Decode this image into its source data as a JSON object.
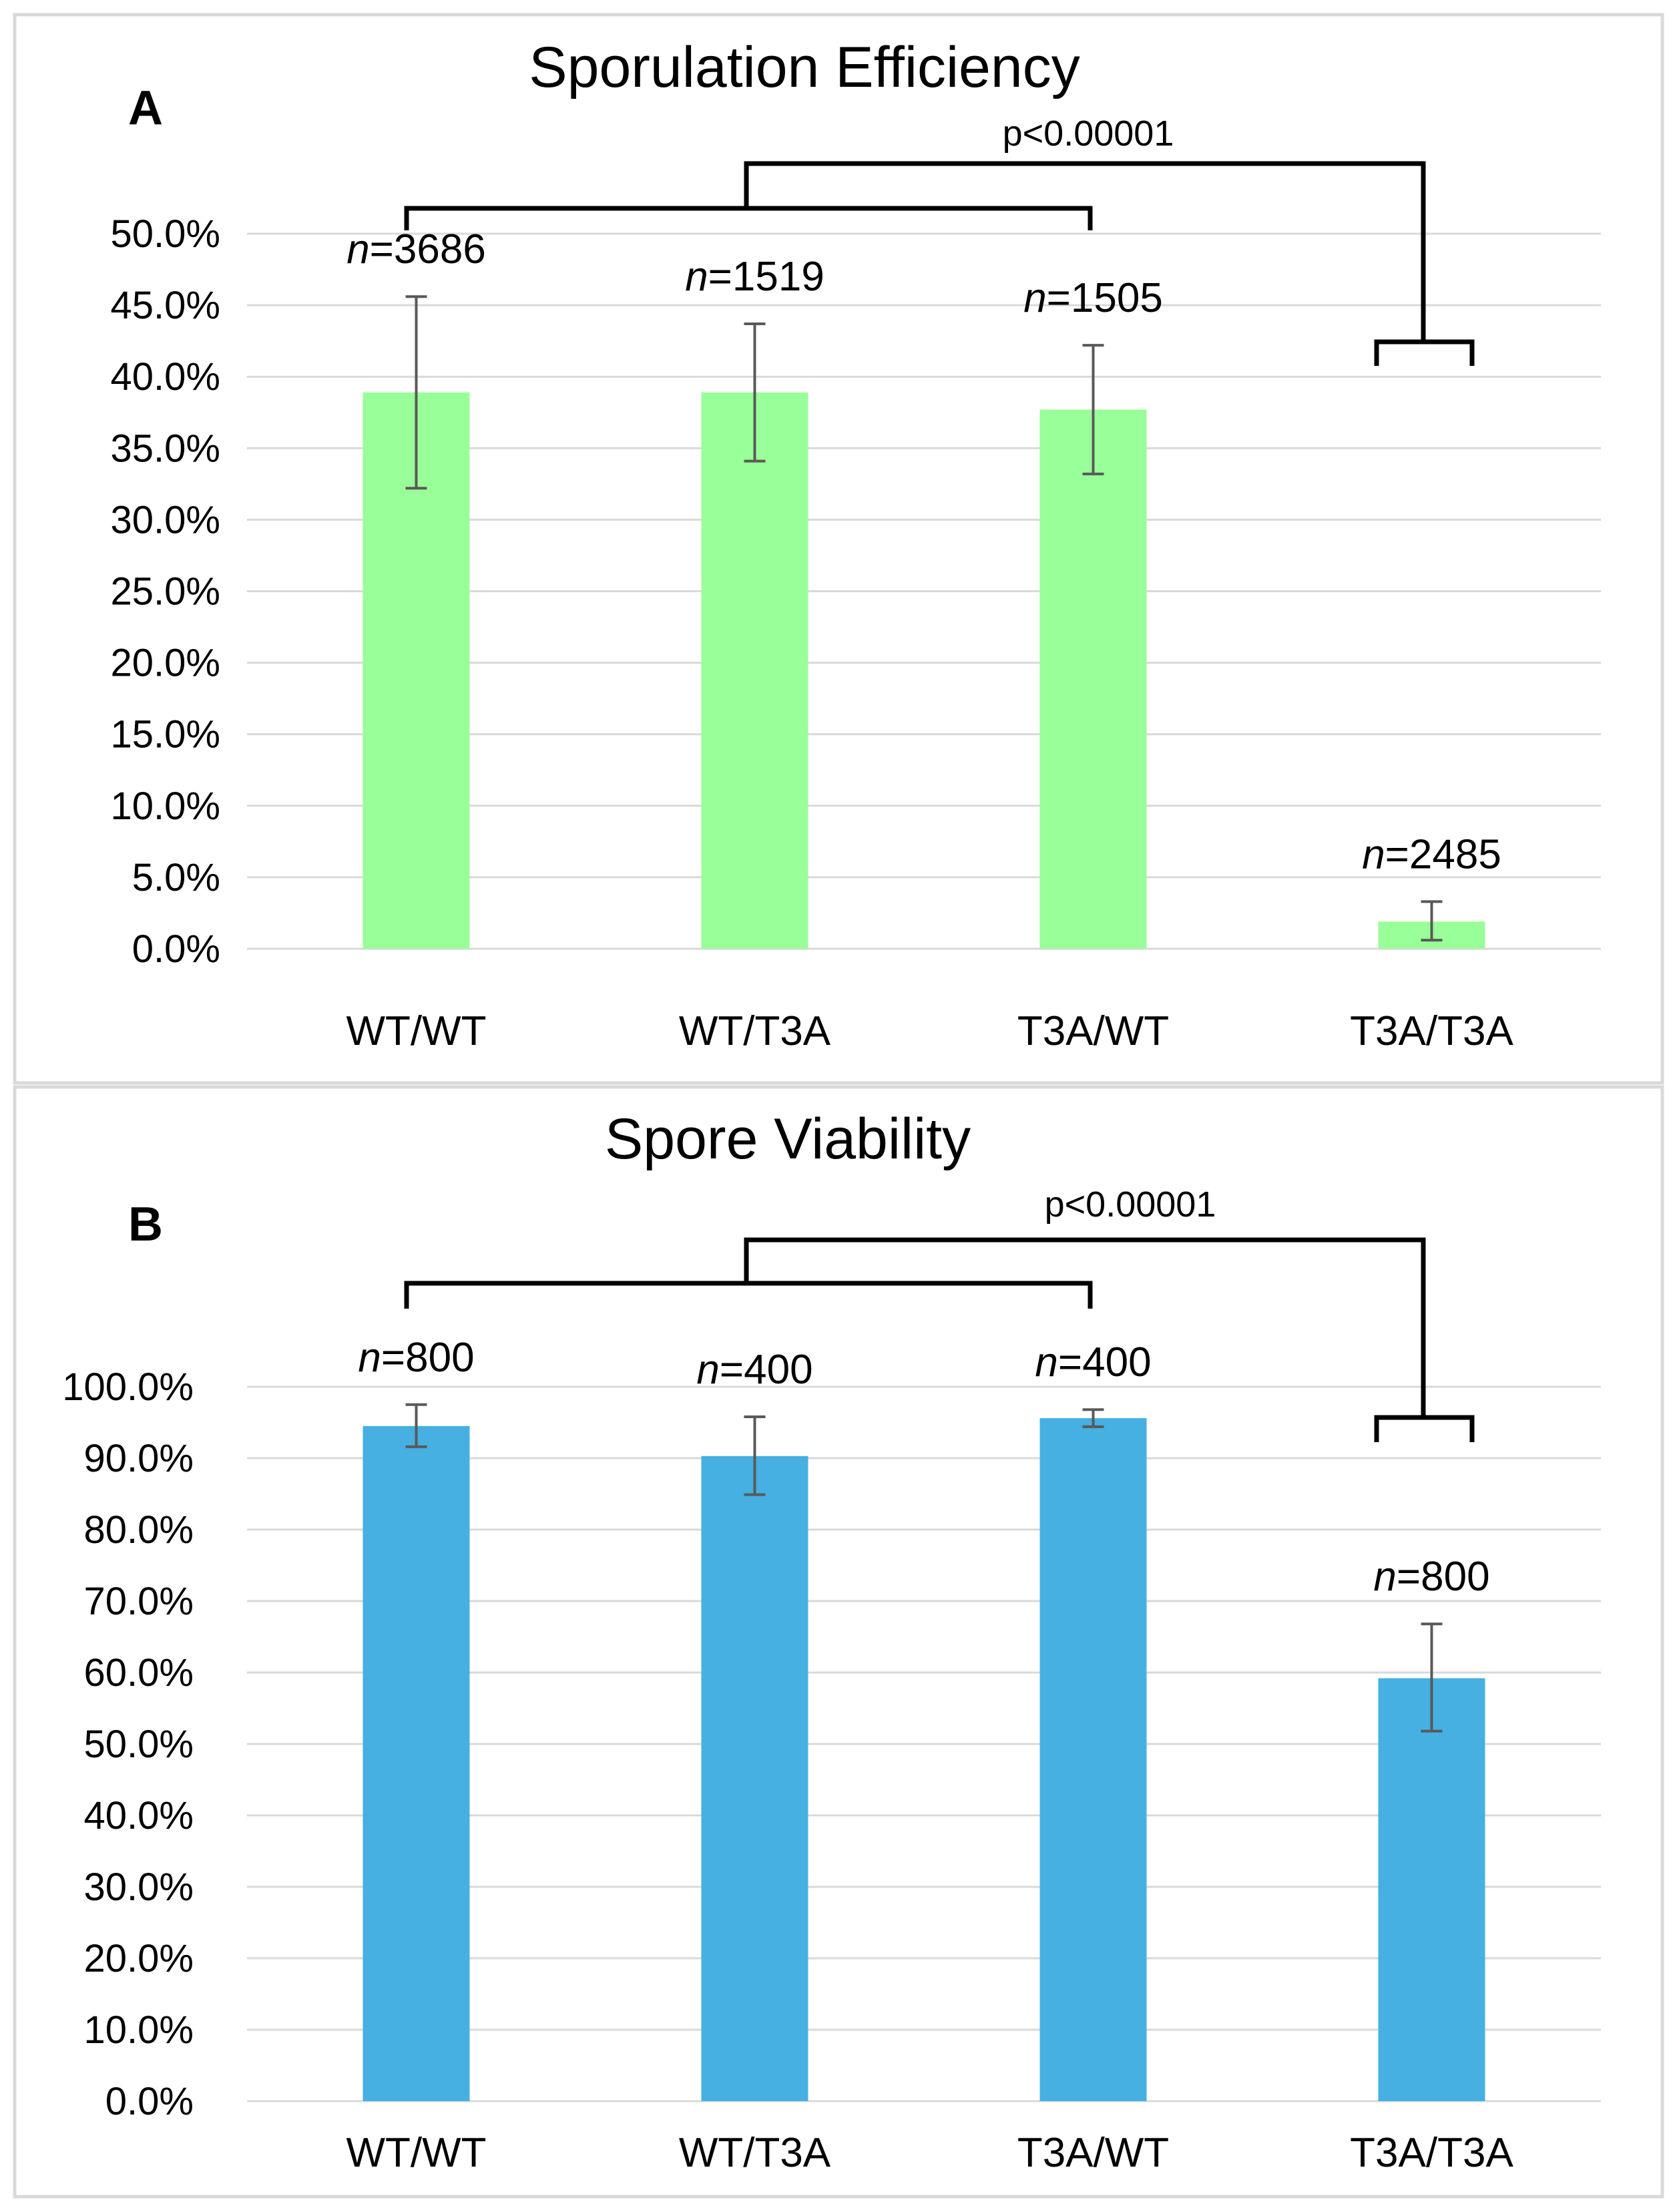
{
  "chart_data": [
    {
      "type": "bar",
      "panel_label": "A",
      "title": "Sporulation Efficiency",
      "categories": [
        "WT/WT",
        "WT/T3A",
        "T3A/WT",
        "T3A/T3A"
      ],
      "values": [
        38.9,
        38.9,
        37.7,
        1.9
      ],
      "error_low": [
        32.2,
        34.1,
        33.2,
        0.6
      ],
      "error_high": [
        45.6,
        43.7,
        42.2,
        3.3
      ],
      "n_prefix": "n",
      "n_labels": [
        "=3686",
        "=1519",
        "=1505",
        "=2485"
      ],
      "color": "#99ff99",
      "ylim": [
        0,
        50
      ],
      "yticks": [
        0,
        5,
        10,
        15,
        20,
        25,
        30,
        35,
        40,
        45,
        50
      ],
      "ytick_labels": [
        "0.0%",
        "5.0%",
        "10.0%",
        "15.0%",
        "20.0%",
        "25.0%",
        "30.0%",
        "35.0%",
        "40.0%",
        "45.0%",
        "50.0%"
      ],
      "xlabel": "",
      "ylabel": "",
      "grid": true,
      "significance": {
        "label": "p<0.00001",
        "group_left": [
          "WT/WT",
          "WT/T3A",
          "T3A/WT"
        ],
        "group_right": [
          "T3A/T3A"
        ]
      }
    },
    {
      "type": "bar",
      "panel_label": "B",
      "title": "Spore Viability",
      "categories": [
        "WT/WT",
        "WT/T3A",
        "T3A/WT",
        "T3A/T3A"
      ],
      "values": [
        94.5,
        90.3,
        95.6,
        59.2
      ],
      "error_low": [
        91.6,
        84.9,
        94.4,
        51.8
      ],
      "error_high": [
        97.5,
        95.8,
        96.8,
        66.8
      ],
      "n_prefix": "n",
      "n_labels": [
        "=800",
        "=400",
        "=400",
        "=800"
      ],
      "color": "#45b0e1",
      "ylim": [
        0,
        100
      ],
      "yticks": [
        0,
        10,
        20,
        30,
        40,
        50,
        60,
        70,
        80,
        90,
        100
      ],
      "ytick_labels": [
        "0.0%",
        "10.0%",
        "20.0%",
        "30.0%",
        "40.0%",
        "50.0%",
        "60.0%",
        "70.0%",
        "80.0%",
        "90.0%",
        "100.0%"
      ],
      "xlabel": "",
      "ylabel": "",
      "grid": true,
      "significance": {
        "label": "p<0.00001",
        "group_left": [
          "WT/WT",
          "WT/T3A",
          "T3A/WT"
        ],
        "group_right": [
          "T3A/T3A"
        ]
      }
    }
  ]
}
